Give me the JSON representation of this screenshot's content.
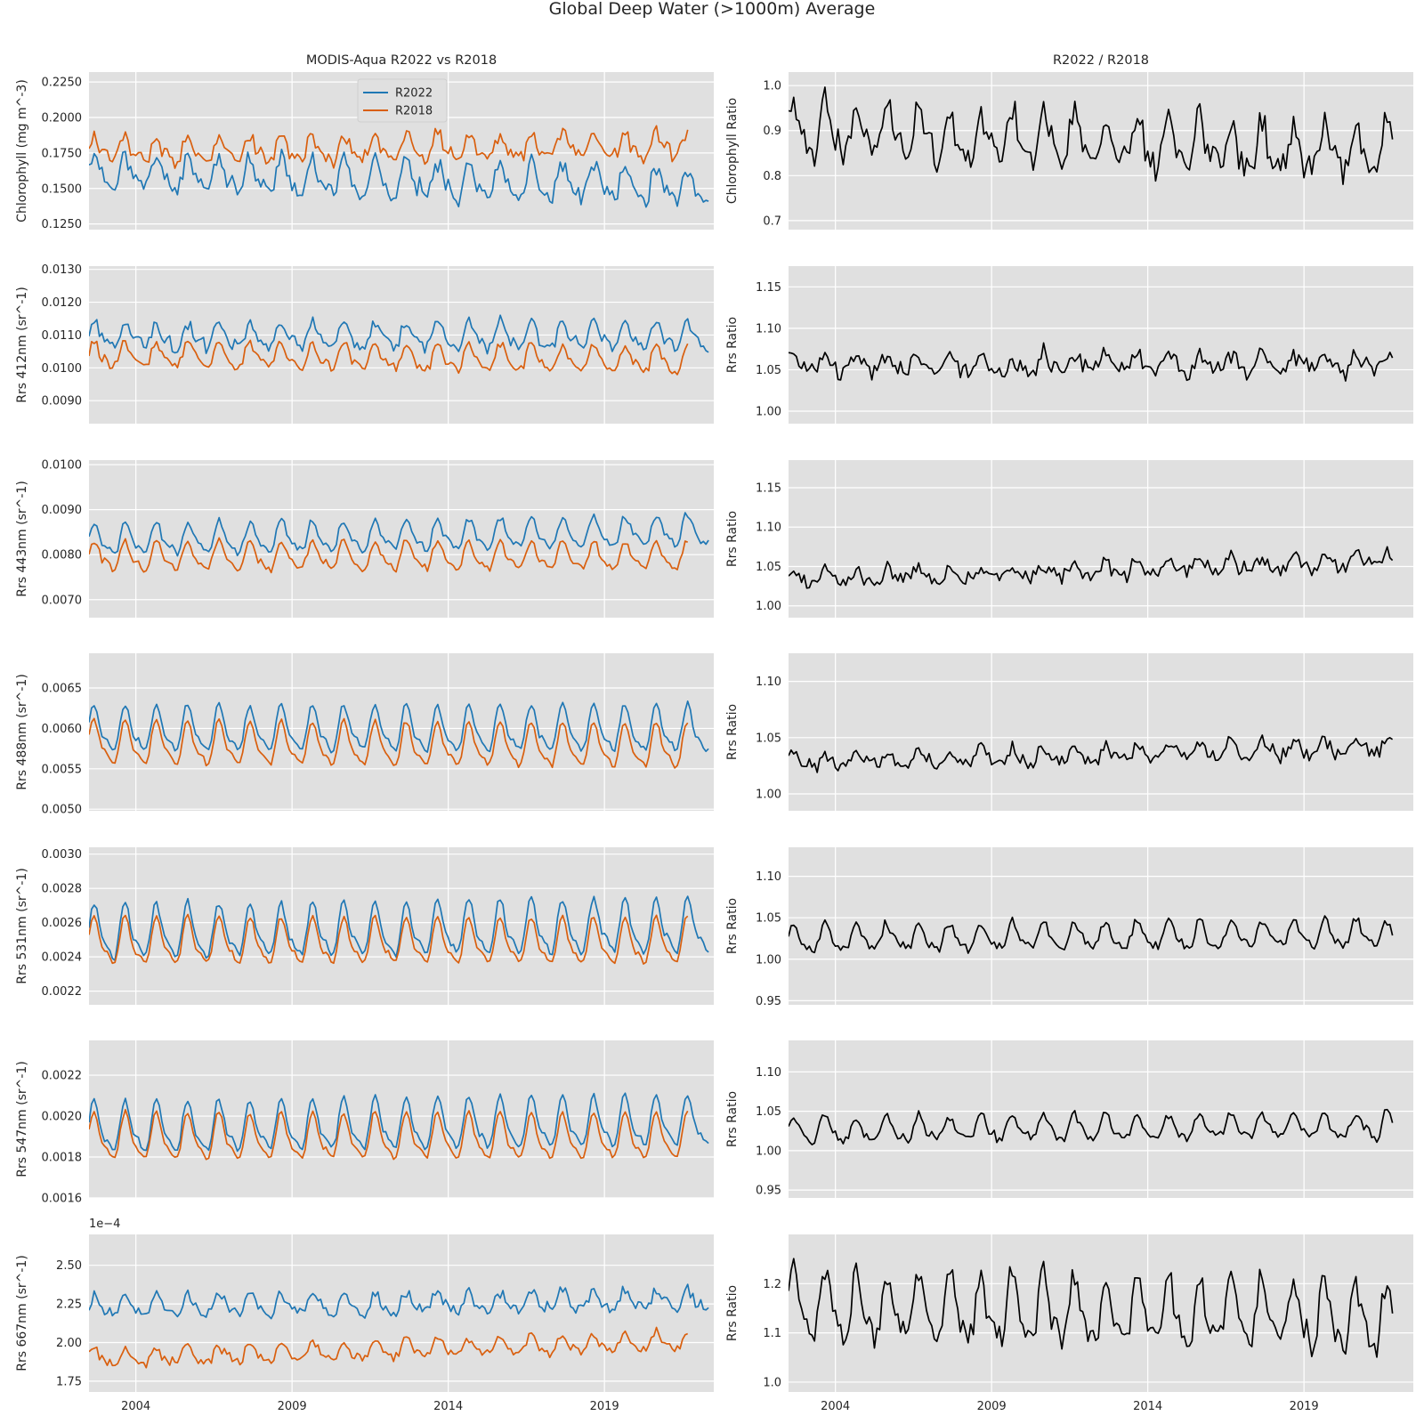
{
  "figure": {
    "title": "Global Deep Water (>1000m) Average",
    "left_column_title": "MODIS-Aqua R2022 vs R2018",
    "right_column_title": "R2022 / R2018"
  },
  "legend": {
    "entries": [
      "R2022",
      "R2018"
    ]
  },
  "colors": {
    "R2022": "#1f77b4",
    "R2018": "#d95f0e",
    "ratio": "#000000",
    "panel_background": "#e0e0e0",
    "grid": "#ffffff"
  },
  "chart_data": [
    {
      "id": "chl",
      "type": "line",
      "panel": "left",
      "ylabel": "Chlorophyll (mg m^-3)",
      "xlim": [
        2002.5,
        2022.5
      ],
      "ylim": [
        0.121,
        0.232
      ],
      "yticks": [
        "0.1250",
        "0.1500",
        "0.1750",
        "0.2000",
        "0.2250"
      ],
      "xticks": [
        "2004",
        "2009",
        "2014",
        "2019"
      ],
      "show_xticklabels": false,
      "x_range": [
        2002.5,
        2022.4
      ],
      "legend": "upper-center",
      "series": [
        {
          "name": "R2022",
          "base": 0.156,
          "amp": 0.011,
          "noise": 0.008,
          "trend": -0.0005,
          "end": 2022.4,
          "seed": 11
        },
        {
          "name": "R2018",
          "base": 0.178,
          "amp": 0.008,
          "noise": 0.007,
          "trend": 0.0002,
          "end": 2021.7,
          "seed": 12
        }
      ]
    },
    {
      "id": "chl_ratio",
      "type": "line",
      "panel": "right",
      "ylabel": "Chlorophyll Ratio",
      "xlim": [
        2002.5,
        2022.5
      ],
      "ylim": [
        0.68,
        1.03
      ],
      "yticks": [
        "0.7",
        "0.8",
        "0.9",
        "1.0"
      ],
      "xticks": [
        "2004",
        "2009",
        "2014",
        "2019"
      ],
      "show_xticklabels": false,
      "series": [
        {
          "name": "ratio",
          "base": 0.875,
          "amp": 0.05,
          "noise": 0.045,
          "trend": -0.003,
          "end": 2021.9,
          "seed": 13
        }
      ]
    },
    {
      "id": "rrs412",
      "type": "line",
      "panel": "left",
      "ylabel": "Rrs 412nm (sr^-1)",
      "xlim": [
        2002.5,
        2022.5
      ],
      "ylim": [
        0.0083,
        0.0131
      ],
      "yticks": [
        "0.0090",
        "0.0100",
        "0.0110",
        "0.0120",
        "0.0130"
      ],
      "xticks": [
        "2004",
        "2009",
        "2014",
        "2019"
      ],
      "show_xticklabels": false,
      "series": [
        {
          "name": "R2022",
          "base": 0.01095,
          "amp": 0.00035,
          "noise": 0.00025,
          "trend": 0,
          "end": 2022.4,
          "seed": 21
        },
        {
          "name": "R2018",
          "base": 0.0103,
          "amp": 0.00035,
          "noise": 0.0002,
          "trend": -1e-05,
          "end": 2021.7,
          "seed": 22
        }
      ]
    },
    {
      "id": "rrs412_ratio",
      "type": "line",
      "panel": "right",
      "ylabel": "Rrs Ratio",
      "xlim": [
        2002.5,
        2022.5
      ],
      "ylim": [
        0.985,
        1.175
      ],
      "yticks": [
        "1.00",
        "1.05",
        "1.10",
        "1.15"
      ],
      "xticks": [
        "2004",
        "2009",
        "2014",
        "2019"
      ],
      "show_xticklabels": false,
      "series": [
        {
          "name": "ratio",
          "base": 1.057,
          "amp": 0.01,
          "noise": 0.015,
          "trend": 0.0002,
          "end": 2021.9,
          "seed": 23
        }
      ]
    },
    {
      "id": "rrs443",
      "type": "line",
      "panel": "left",
      "ylabel": "Rrs 443nm (sr^-1)",
      "xlim": [
        2002.5,
        2022.5
      ],
      "ylim": [
        0.0066,
        0.0101
      ],
      "yticks": [
        "0.0070",
        "0.0080",
        "0.0090",
        "0.0100"
      ],
      "xticks": [
        "2004",
        "2009",
        "2014",
        "2019"
      ],
      "show_xticklabels": false,
      "series": [
        {
          "name": "R2022",
          "base": 0.0084,
          "amp": 0.0003,
          "noise": 0.00012,
          "trend": 1e-05,
          "end": 2022.4,
          "seed": 31
        },
        {
          "name": "R2018",
          "base": 0.00795,
          "amp": 0.00028,
          "noise": 0.0001,
          "trend": 0,
          "end": 2021.7,
          "seed": 32
        }
      ]
    },
    {
      "id": "rrs443_ratio",
      "type": "line",
      "panel": "right",
      "ylabel": "Rrs Ratio",
      "xlim": [
        2002.5,
        2022.5
      ],
      "ylim": [
        0.985,
        1.185
      ],
      "yticks": [
        "1.00",
        "1.05",
        "1.10",
        "1.15"
      ],
      "xticks": [
        "2004",
        "2009",
        "2014",
        "2019"
      ],
      "show_xticklabels": false,
      "series": [
        {
          "name": "ratio",
          "base": 1.045,
          "amp": 0.008,
          "noise": 0.012,
          "trend": 0.0012,
          "end": 2021.9,
          "seed": 33
        }
      ]
    },
    {
      "id": "rrs488",
      "type": "line",
      "panel": "left",
      "ylabel": "Rrs 488nm (sr^-1)",
      "xlim": [
        2002.5,
        2022.5
      ],
      "ylim": [
        0.00498,
        0.00693
      ],
      "yticks": [
        "0.0050",
        "0.0055",
        "0.0060",
        "0.0065"
      ],
      "xticks": [
        "2004",
        "2009",
        "2014",
        "2019"
      ],
      "show_xticklabels": false,
      "series": [
        {
          "name": "R2022",
          "base": 0.00597,
          "amp": 0.00025,
          "noise": 5e-05,
          "trend": 0,
          "end": 2022.4,
          "seed": 41
        },
        {
          "name": "R2018",
          "base": 0.00578,
          "amp": 0.00024,
          "noise": 4e-05,
          "trend": -2e-06,
          "end": 2021.7,
          "seed": 42
        }
      ]
    },
    {
      "id": "rrs488_ratio",
      "type": "line",
      "panel": "right",
      "ylabel": "Rrs Ratio",
      "xlim": [
        2002.5,
        2022.5
      ],
      "ylim": [
        0.985,
        1.125
      ],
      "yticks": [
        "1.00",
        "1.05",
        "1.10"
      ],
      "xticks": [
        "2004",
        "2009",
        "2014",
        "2019"
      ],
      "show_xticklabels": false,
      "series": [
        {
          "name": "ratio",
          "base": 1.035,
          "amp": 0.006,
          "noise": 0.008,
          "trend": 0.0007,
          "end": 2021.9,
          "seed": 43
        }
      ]
    },
    {
      "id": "rrs531",
      "type": "line",
      "panel": "left",
      "ylabel": "Rrs 531nm (sr^-1)",
      "xlim": [
        2002.5,
        2022.5
      ],
      "ylim": [
        0.00212,
        0.00304
      ],
      "yticks": [
        "0.0022",
        "0.0024",
        "0.0026",
        "0.0028",
        "0.0030"
      ],
      "xticks": [
        "2004",
        "2009",
        "2014",
        "2019"
      ],
      "show_xticklabels": false,
      "series": [
        {
          "name": "R2022",
          "base": 0.00255,
          "amp": 0.00014,
          "noise": 3e-05,
          "trend": 2e-06,
          "end": 2022.4,
          "seed": 51
        },
        {
          "name": "R2018",
          "base": 0.00248,
          "amp": 0.00012,
          "noise": 2e-05,
          "trend": 0,
          "end": 2021.7,
          "seed": 52
        }
      ]
    },
    {
      "id": "rrs531_ratio",
      "type": "line",
      "panel": "right",
      "ylabel": "Rrs Ratio",
      "xlim": [
        2002.5,
        2022.5
      ],
      "ylim": [
        0.945,
        1.135
      ],
      "yticks": [
        "0.95",
        "1.00",
        "1.05",
        "1.10"
      ],
      "xticks": [
        "2004",
        "2009",
        "2014",
        "2019"
      ],
      "show_xticklabels": false,
      "series": [
        {
          "name": "ratio",
          "base": 1.027,
          "amp": 0.014,
          "noise": 0.008,
          "trend": 0.0003,
          "end": 2021.9,
          "seed": 53
        }
      ]
    },
    {
      "id": "rrs547",
      "type": "line",
      "panel": "left",
      "ylabel": "Rrs 547nm (sr^-1)",
      "xlim": [
        2002.5,
        2022.5
      ],
      "ylim": [
        0.0016,
        0.00237
      ],
      "yticks": [
        "0.0016",
        "0.0018",
        "0.0020",
        "0.0022"
      ],
      "xticks": [
        "2004",
        "2009",
        "2014",
        "2019"
      ],
      "show_xticklabels": false,
      "series": [
        {
          "name": "R2022",
          "base": 0.00195,
          "amp": 0.00011,
          "noise": 2e-05,
          "trend": 2e-06,
          "end": 2022.4,
          "seed": 61
        },
        {
          "name": "R2018",
          "base": 0.00189,
          "amp": 0.0001,
          "noise": 1.5e-05,
          "trend": 0,
          "end": 2021.7,
          "seed": 62
        }
      ]
    },
    {
      "id": "rrs547_ratio",
      "type": "line",
      "panel": "right",
      "ylabel": "Rrs Ratio",
      "xlim": [
        2002.5,
        2022.5
      ],
      "ylim": [
        0.94,
        1.14
      ],
      "yticks": [
        "0.95",
        "1.00",
        "1.05",
        "1.10"
      ],
      "xticks": [
        "2004",
        "2009",
        "2014",
        "2019"
      ],
      "show_xticklabels": false,
      "series": [
        {
          "name": "ratio",
          "base": 1.028,
          "amp": 0.014,
          "noise": 0.008,
          "trend": 0.0003,
          "end": 2021.9,
          "seed": 63
        }
      ]
    },
    {
      "id": "rrs667",
      "type": "line",
      "panel": "left",
      "ylabel": "Rrs 667nm (sr^-1)",
      "offset_label": "1e−4",
      "xlim": [
        2002.5,
        2022.5
      ],
      "ylim": [
        1.68,
        2.7
      ],
      "yticks": [
        "1.75",
        "2.00",
        "2.25",
        "2.50"
      ],
      "xticks": [
        "2004",
        "2009",
        "2014",
        "2019"
      ],
      "show_xticklabels": true,
      "series": [
        {
          "name": "R2022",
          "base": 2.25,
          "amp": 0.06,
          "noise": 0.05,
          "trend": 0.002,
          "end": 2022.4,
          "seed": 71
        },
        {
          "name": "R2018",
          "base": 1.95,
          "amp": 0.05,
          "noise": 0.04,
          "trend": 0.006,
          "end": 2021.7,
          "seed": 72
        }
      ]
    },
    {
      "id": "rrs667_ratio",
      "type": "line",
      "panel": "right",
      "ylabel": "Rrs Ratio",
      "xlim": [
        2002.5,
        2022.5
      ],
      "ylim": [
        0.98,
        1.3
      ],
      "yticks": [
        "1.0",
        "1.1",
        "1.2"
      ],
      "xticks": [
        "2004",
        "2009",
        "2014",
        "2019"
      ],
      "show_xticklabels": true,
      "series": [
        {
          "name": "ratio",
          "base": 1.14,
          "amp": 0.06,
          "noise": 0.035,
          "trend": -0.001,
          "end": 2021.9,
          "seed": 73
        }
      ]
    }
  ]
}
